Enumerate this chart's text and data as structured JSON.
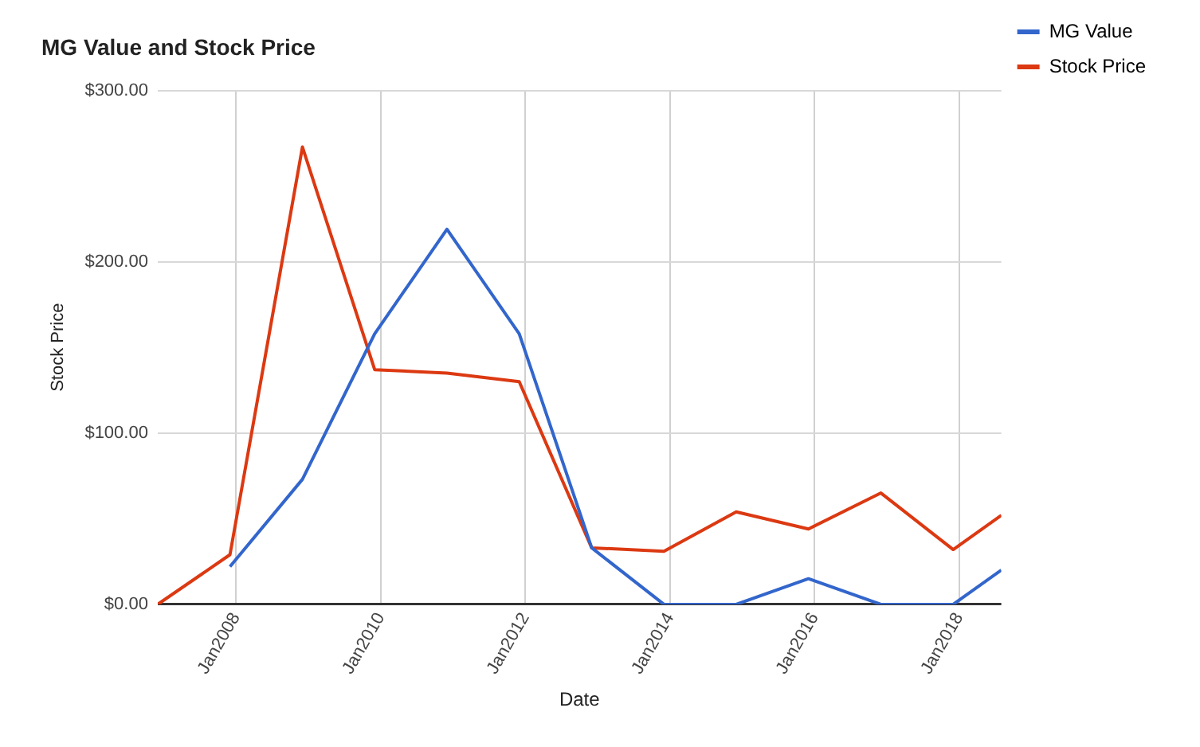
{
  "chart_data": {
    "type": "line",
    "title": "MG Value and Stock Price",
    "xlabel": "Date",
    "ylabel": "Stock Price",
    "x": [
      "2006-12",
      "2007-12",
      "2008-12",
      "2009-12",
      "2010-12",
      "2011-12",
      "2012-12",
      "2013-12",
      "2014-12",
      "2015-12",
      "2016-12",
      "2017-12",
      "2018-08"
    ],
    "series": [
      {
        "name": "MG Value",
        "color": "#3366cc",
        "values": [
          null,
          22,
          73,
          158,
          219,
          158,
          33,
          0,
          0,
          15,
          0,
          0,
          20
        ]
      },
      {
        "name": "Stock Price",
        "color": "#dc3912",
        "values": [
          0,
          29,
          267,
          137,
          135,
          130,
          33,
          31,
          54,
          44,
          65,
          32,
          52
        ]
      }
    ],
    "xlim": [
      "2006-12",
      "2018-08"
    ],
    "xticks": [
      {
        "value": "2008-01",
        "label": "Jan2008"
      },
      {
        "value": "2010-01",
        "label": "Jan2010"
      },
      {
        "value": "2012-01",
        "label": "Jan2012"
      },
      {
        "value": "2014-01",
        "label": "Jan2014"
      },
      {
        "value": "2016-01",
        "label": "Jan2016"
      },
      {
        "value": "2018-01",
        "label": "Jan2018"
      }
    ],
    "ylim": [
      0,
      300
    ],
    "yticks": [
      {
        "value": 0,
        "label": "$0.00"
      },
      {
        "value": 100,
        "label": "$100.00"
      },
      {
        "value": 200,
        "label": "$200.00"
      },
      {
        "value": 300,
        "label": "$300.00"
      }
    ],
    "grid": true,
    "legend": "right",
    "marker": "none",
    "line_style": "solid"
  }
}
